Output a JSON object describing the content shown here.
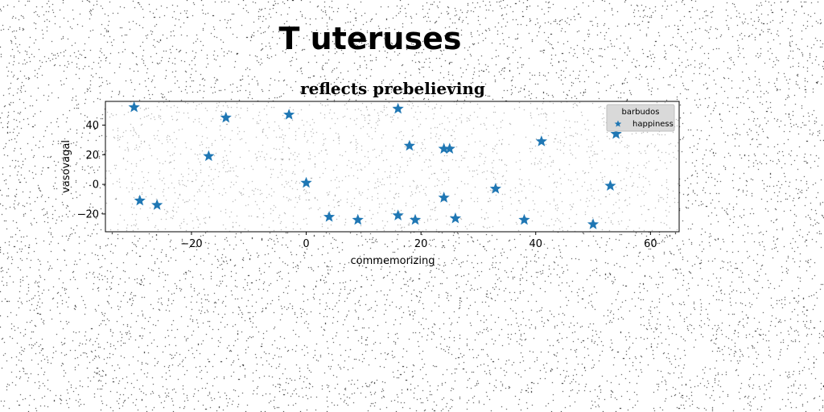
{
  "page": {
    "title": "T uteruses"
  },
  "chart_data": {
    "type": "scatter",
    "title": "reflects prebelieving",
    "xlabel": "commemorizing",
    "ylabel": "vasovagal",
    "xlim": [
      -35,
      65
    ],
    "ylim": [
      -32,
      56
    ],
    "xticks": [
      -20,
      0,
      20,
      40,
      60
    ],
    "yticks": [
      -20,
      0,
      20,
      40
    ],
    "grid": false,
    "legend": {
      "title": "barbudos",
      "placement": "top-right"
    },
    "series": [
      {
        "name": "happiness",
        "marker": "star",
        "color": "#1f77b4",
        "points": [
          {
            "x": -30,
            "y": 52
          },
          {
            "x": -29,
            "y": -11
          },
          {
            "x": -26,
            "y": -14
          },
          {
            "x": -17,
            "y": 19
          },
          {
            "x": -14,
            "y": 45
          },
          {
            "x": -3,
            "y": 47
          },
          {
            "x": 0,
            "y": 1
          },
          {
            "x": 4,
            "y": -22
          },
          {
            "x": 9,
            "y": -24
          },
          {
            "x": 16,
            "y": 51
          },
          {
            "x": 16,
            "y": -21
          },
          {
            "x": 18,
            "y": 26
          },
          {
            "x": 19,
            "y": -24
          },
          {
            "x": 24,
            "y": 24
          },
          {
            "x": 24,
            "y": -9
          },
          {
            "x": 25,
            "y": 24
          },
          {
            "x": 26,
            "y": -23
          },
          {
            "x": 33,
            "y": -3
          },
          {
            "x": 38,
            "y": -24
          },
          {
            "x": 41,
            "y": 29
          },
          {
            "x": 50,
            "y": -27
          },
          {
            "x": 53,
            "y": -1
          },
          {
            "x": 54,
            "y": 34
          }
        ]
      }
    ]
  }
}
